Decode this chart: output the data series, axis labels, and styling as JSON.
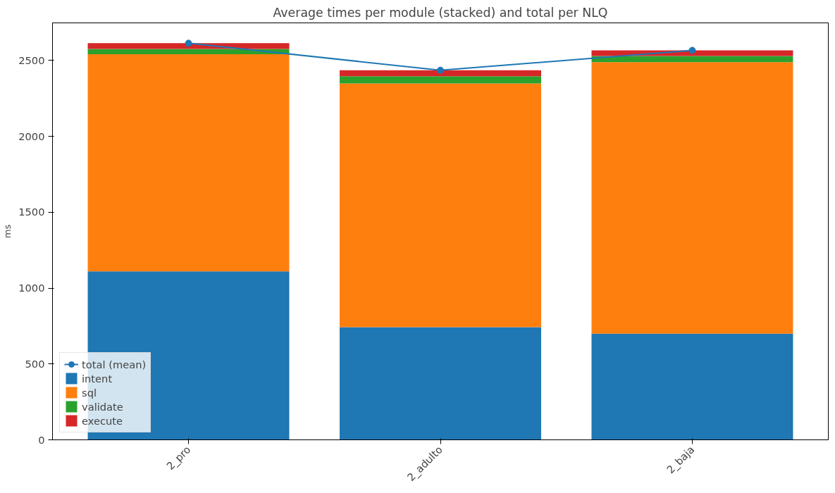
{
  "chart_data": {
    "type": "bar",
    "stacked": true,
    "title": "Average times per module (stacked) and total per NLQ",
    "ylabel": "ms",
    "categories": [
      "2_pro",
      "2_adulto",
      "2_baja"
    ],
    "series": [
      {
        "name": "intent",
        "color": "#1f77b4",
        "values": [
          1111,
          743,
          700
        ]
      },
      {
        "name": "sql",
        "color": "#ff7f0e",
        "values": [
          1431,
          1606,
          1789
        ]
      },
      {
        "name": "validate",
        "color": "#2ca02c",
        "values": [
          34,
          47,
          41
        ]
      },
      {
        "name": "execute",
        "color": "#d62728",
        "values": [
          38,
          40,
          37
        ]
      },
      {
        "name": "total (mean)",
        "type": "line",
        "marker": "circle",
        "color": "#1f77b4",
        "values": [
          2614,
          2436,
          2567
        ]
      }
    ],
    "ylim": [
      0,
      2748
    ],
    "yticks": [
      0,
      500,
      1000,
      1500,
      2000,
      2500
    ],
    "grid": false,
    "legend": "bottom left"
  }
}
